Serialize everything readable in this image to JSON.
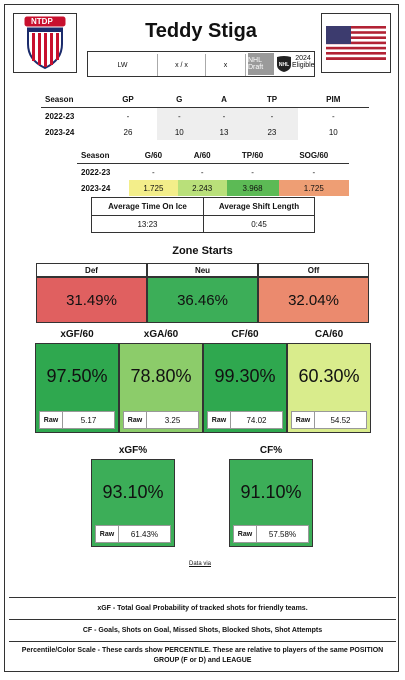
{
  "player": {
    "name": "Teddy Stiga",
    "position": "LW",
    "height_weight": "x / x",
    "extra": "x",
    "draft_label": "NHL Draft",
    "draft_status": "2024 Eligible"
  },
  "logo_text": "NTDP",
  "basic_stats": {
    "headers": [
      "Season",
      "GP",
      "G",
      "A",
      "TP",
      "PIM"
    ],
    "rows": [
      [
        "2022-23",
        "-",
        "-",
        "-",
        "-",
        "-"
      ],
      [
        "2023-24",
        "26",
        "10",
        "13",
        "23",
        "10"
      ]
    ]
  },
  "rate_stats": {
    "headers": [
      "Season",
      "G/60",
      "A/60",
      "TP/60",
      "SOG/60"
    ],
    "rows": [
      [
        "2022-23",
        "-",
        "-",
        "-",
        "-"
      ],
      [
        "2023-24",
        "1.725",
        "2.243",
        "3.968",
        "1.725"
      ]
    ],
    "colors": [
      "#f3ee8a",
      "#b9e07a",
      "#5cba55",
      "#ee9e74"
    ]
  },
  "toi": {
    "label1": "Average Time On Ice",
    "label2": "Average Shift Length",
    "value1": "13:23",
    "value2": "0:45"
  },
  "zone_starts": {
    "title": "Zone Starts",
    "items": [
      {
        "label": "Def",
        "value": "31.49%",
        "color": "#e06060"
      },
      {
        "label": "Neu",
        "value": "36.46%",
        "color": "#3cae58"
      },
      {
        "label": "Off",
        "value": "32.04%",
        "color": "#eb8a6e"
      }
    ]
  },
  "metrics": [
    {
      "title": "xGF/60",
      "value": "97.50%",
      "raw_label": "Raw",
      "raw": "5.17",
      "color": "#2fa84f"
    },
    {
      "title": "xGA/60",
      "value": "78.80%",
      "raw_label": "Raw",
      "raw": "3.25",
      "color": "#8ccc6a"
    },
    {
      "title": "CF/60",
      "value": "99.30%",
      "raw_label": "Raw",
      "raw": "74.02",
      "color": "#2fa84f"
    },
    {
      "title": "CA/60",
      "value": "60.30%",
      "raw_label": "Raw",
      "raw": "54.52",
      "color": "#d9ec8c"
    }
  ],
  "metrics2": [
    {
      "title": "xGF%",
      "value": "93.10%",
      "raw_label": "Raw",
      "raw": "61.43%",
      "color": "#3cae58"
    },
    {
      "title": "CF%",
      "value": "91.10%",
      "raw_label": "Raw",
      "raw": "57.58%",
      "color": "#3cae58"
    }
  ],
  "data_via": "Data via",
  "footnotes": [
    "xGF - Total Goal Probability of tracked shots for friendly teams.",
    "CF - Goals, Shots on Goal, Missed Shots, Blocked Shots, Shot Attempts",
    "Percentile/Color Scale - These cards show PERCENTILE. These are relative to players of the same POSITION GROUP (F or D) and LEAGUE"
  ]
}
